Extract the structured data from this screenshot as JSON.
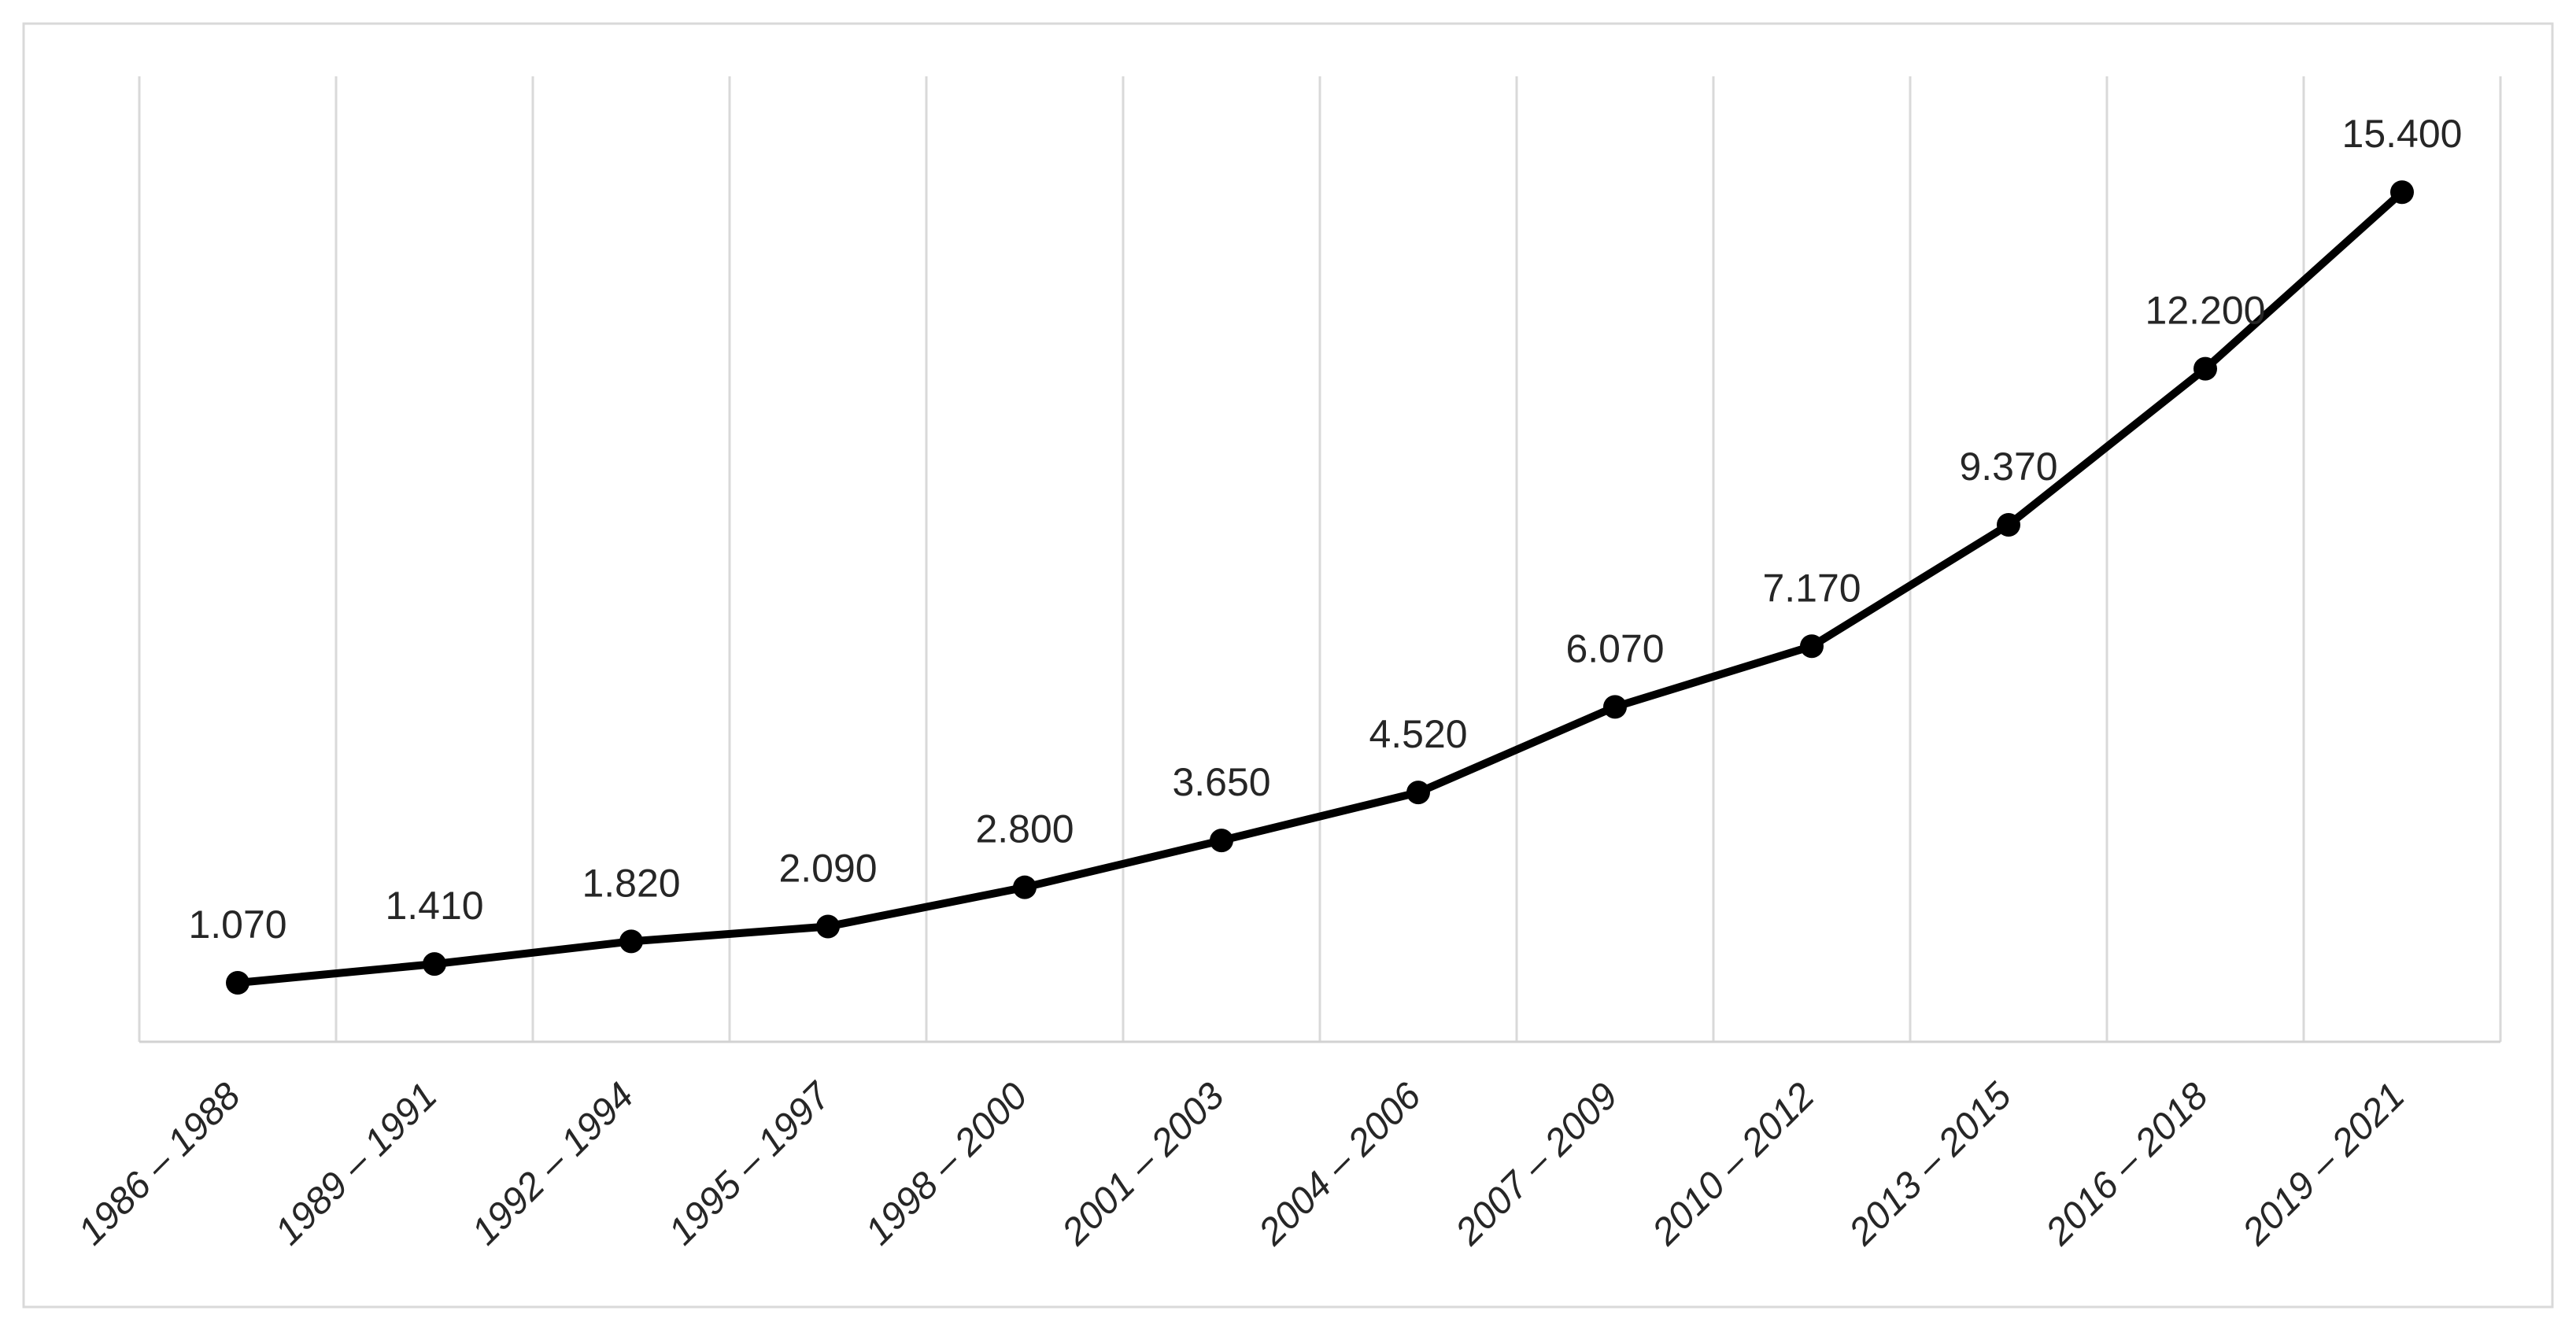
{
  "chart_data": {
    "type": "line",
    "title": "",
    "xlabel": "",
    "ylabel": "",
    "categories": [
      "1986 – 1988",
      "1989 – 1991",
      "1992 – 1994",
      "1995 – 1997",
      "1998 – 2000",
      "2001 – 2003",
      "2004 – 2006",
      "2007 – 2009",
      "2010 – 2012",
      "2013 – 2015",
      "2016 – 2018",
      "2019 – 2021"
    ],
    "series": [
      {
        "name": "",
        "values": [
          1070,
          1410,
          1820,
          2090,
          2800,
          3650,
          4520,
          6070,
          7170,
          9370,
          12200,
          15400
        ]
      }
    ],
    "value_labels": [
      "1.070",
      "1.410",
      "1.820",
      "2.090",
      "2.800",
      "3.650",
      "4.520",
      "6.070",
      "7.170",
      "9.370",
      "12.200",
      "15.400"
    ],
    "ylim": [
      0,
      17500
    ],
    "y_axis_labels_visible": false,
    "gridlines": "vertical-only",
    "legend_position": "none",
    "x_tick_rotation_deg": 45,
    "data_label_position": "above",
    "marker": "filled-circle",
    "colors": {
      "line": "#000000",
      "marker": "#000000",
      "label_text": "#262626",
      "axis_text": "#262626",
      "gridline": "#d9d9d9",
      "axis_line": "#d2d2d2",
      "border": "#d9d9d9",
      "background": "#ffffff"
    }
  }
}
